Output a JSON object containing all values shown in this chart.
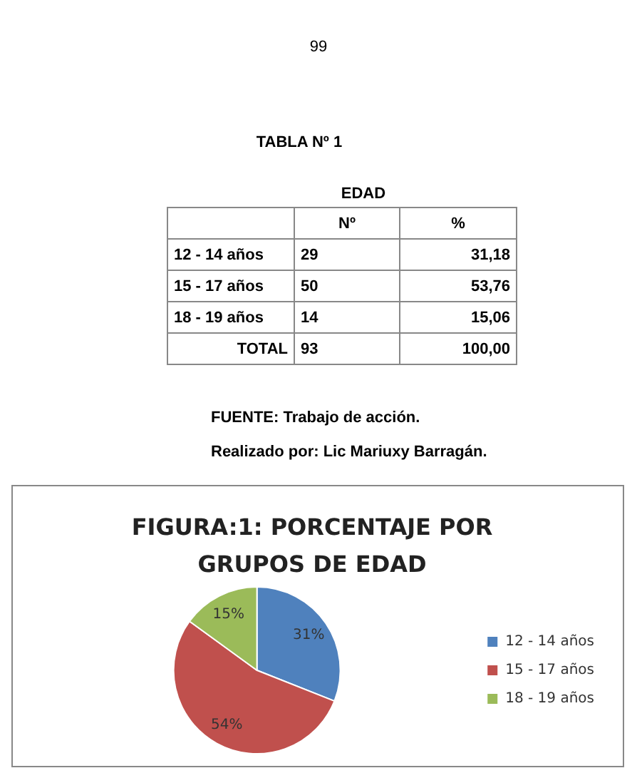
{
  "chart_data": {
    "type": "pie",
    "title": "FIGURA:1: PORCENTAJE POR GRUPOS DE EDAD",
    "categories": [
      "12 - 14 años",
      "15 - 17 años",
      "18 - 19 años"
    ],
    "values": [
      31,
      54,
      15
    ],
    "colors": [
      "#4f81bd",
      "#c0504d",
      "#9bbb59"
    ],
    "value_labels": [
      "31%",
      "54%",
      "15%"
    ],
    "legend": "right",
    "annotations": [
      "99",
      "TABLA Nº 1",
      "EDAD",
      "Nº",
      "%",
      "12 - 14 años",
      "29",
      "31,18",
      "15 - 17 años",
      "50",
      "53,76",
      "18 - 19 años",
      "14",
      "15,06",
      "TOTAL",
      "93",
      "100,00",
      "FUENTE: Trabajo de acción.",
      "Realizado por: Lic Mariuxy Barragán."
    ]
  }
}
